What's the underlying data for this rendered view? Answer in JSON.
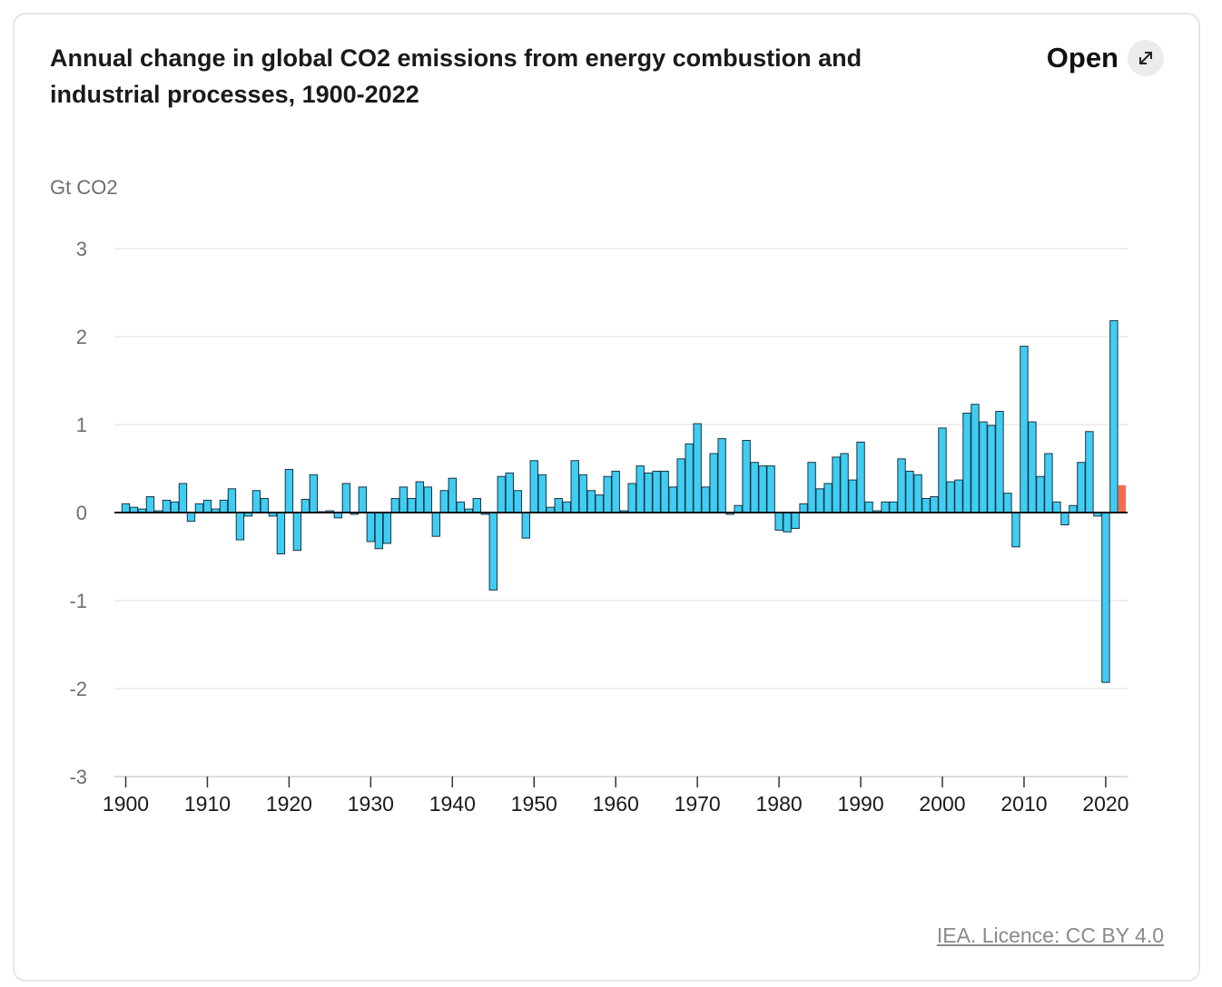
{
  "title": "Annual change in global CO2 emissions from energy combustion and industrial processes, 1900-2022",
  "open_label": "Open",
  "open_icon": "expand-arrows-icon",
  "credit": "IEA. Licence: CC BY 4.0",
  "colors": {
    "bar": "#3fcdf3",
    "highlight": "#f26c4f",
    "outline": "#1a3440",
    "grid": "#dcdcdc"
  },
  "chart_data": {
    "type": "bar",
    "title": "Annual change in global CO2 emissions from energy combustion and industrial processes, 1900-2022",
    "ylabel": "Gt CO2",
    "xlabel": "",
    "ylim": [
      -3,
      3
    ],
    "yticks": [
      "3",
      "2",
      "1",
      "0",
      "-1",
      "-2",
      "-3"
    ],
    "xticks": [
      "1900",
      "1910",
      "1920",
      "1930",
      "1940",
      "1950",
      "1960",
      "1970",
      "1980",
      "1990",
      "2000",
      "2010",
      "2020"
    ],
    "grid": true,
    "highlight_year": 2022,
    "x": [
      1900,
      1901,
      1902,
      1903,
      1904,
      1905,
      1906,
      1907,
      1908,
      1909,
      1910,
      1911,
      1912,
      1913,
      1914,
      1915,
      1916,
      1917,
      1918,
      1919,
      1920,
      1921,
      1922,
      1923,
      1924,
      1925,
      1926,
      1927,
      1928,
      1929,
      1930,
      1931,
      1932,
      1933,
      1934,
      1935,
      1936,
      1937,
      1938,
      1939,
      1940,
      1941,
      1942,
      1943,
      1944,
      1945,
      1946,
      1947,
      1948,
      1949,
      1950,
      1951,
      1952,
      1953,
      1954,
      1955,
      1956,
      1957,
      1958,
      1959,
      1960,
      1961,
      1962,
      1963,
      1964,
      1965,
      1966,
      1967,
      1968,
      1969,
      1970,
      1971,
      1972,
      1973,
      1974,
      1975,
      1976,
      1977,
      1978,
      1979,
      1980,
      1981,
      1982,
      1983,
      1984,
      1985,
      1986,
      1987,
      1988,
      1989,
      1990,
      1991,
      1992,
      1993,
      1994,
      1995,
      1996,
      1997,
      1998,
      1999,
      2000,
      2001,
      2002,
      2003,
      2004,
      2005,
      2006,
      2007,
      2008,
      2009,
      2010,
      2011,
      2012,
      2013,
      2014,
      2015,
      2016,
      2017,
      2018,
      2019,
      2020,
      2021,
      2022
    ],
    "values": [
      0.1,
      0.06,
      0.04,
      0.18,
      0.02,
      0.14,
      0.12,
      0.33,
      -0.1,
      0.1,
      0.14,
      0.04,
      0.14,
      0.27,
      -0.31,
      -0.04,
      0.25,
      0.16,
      -0.04,
      -0.47,
      0.49,
      -0.43,
      0.15,
      0.43,
      0.01,
      0.02,
      -0.06,
      0.33,
      -0.02,
      0.29,
      -0.33,
      -0.41,
      -0.35,
      0.16,
      0.29,
      0.16,
      0.35,
      0.29,
      -0.27,
      0.25,
      0.39,
      0.12,
      0.04,
      0.16,
      -0.02,
      -0.88,
      0.41,
      0.45,
      0.25,
      -0.29,
      0.59,
      0.43,
      0.06,
      0.16,
      0.12,
      0.59,
      0.43,
      0.25,
      0.2,
      0.41,
      0.47,
      0.02,
      0.33,
      0.53,
      0.45,
      0.47,
      0.47,
      0.29,
      0.61,
      0.78,
      1.01,
      0.29,
      0.67,
      0.84,
      -0.02,
      0.08,
      0.82,
      0.57,
      0.53,
      0.53,
      -0.2,
      -0.22,
      -0.18,
      0.1,
      0.57,
      0.27,
      0.33,
      0.63,
      0.67,
      0.37,
      0.8,
      0.12,
      0.02,
      0.12,
      0.12,
      0.61,
      0.47,
      0.43,
      0.16,
      0.18,
      0.96,
      0.35,
      0.37,
      1.13,
      1.23,
      1.03,
      0.99,
      1.15,
      0.22,
      -0.39,
      1.89,
      1.03,
      0.41,
      0.67,
      0.12,
      -0.14,
      0.08,
      0.57,
      0.92,
      -0.04,
      -1.93,
      2.18,
      0.31
    ]
  }
}
